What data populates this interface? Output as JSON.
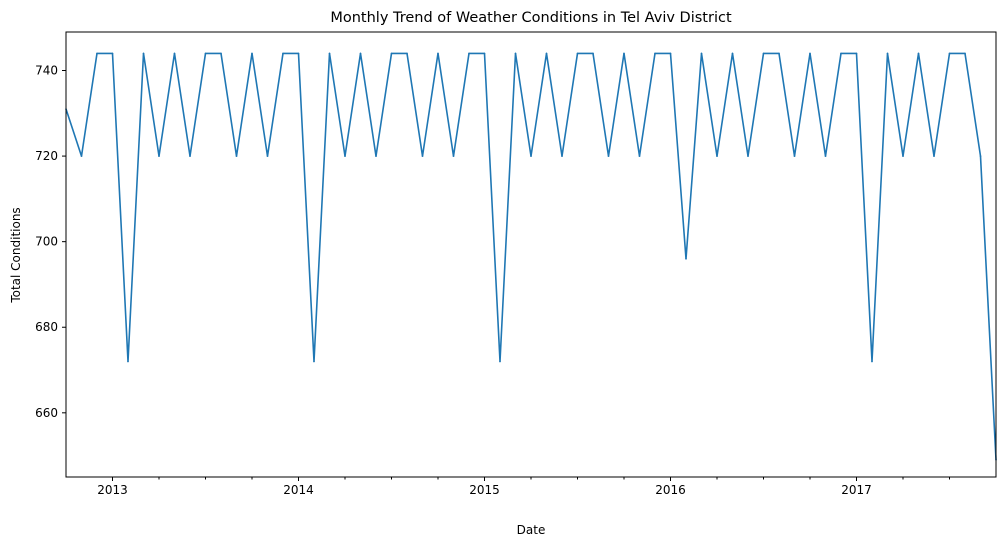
{
  "chart_data": {
    "type": "line",
    "title": "Monthly Trend of Weather Conditions in Tel Aviv District",
    "xlabel": "Date",
    "ylabel": "Total Conditions",
    "grid": false,
    "legend": "none",
    "series_color": "#1f77b4",
    "x_range": [
      "2012-10",
      "2017-10"
    ],
    "ylim": [
      645,
      749
    ],
    "y_ticks": [
      660,
      680,
      700,
      720,
      740
    ],
    "x_major_ticks": [
      {
        "date": "2013-01",
        "label": "2013"
      },
      {
        "date": "2014-01",
        "label": "2014"
      },
      {
        "date": "2015-01",
        "label": "2015"
      },
      {
        "date": "2016-01",
        "label": "2016"
      },
      {
        "date": "2017-01",
        "label": "2017"
      }
    ],
    "series": [
      {
        "x": [
          "2012-10",
          "2012-11",
          "2012-12",
          "2013-01",
          "2013-02",
          "2013-03",
          "2013-04",
          "2013-05",
          "2013-06",
          "2013-07",
          "2013-08",
          "2013-09",
          "2013-10",
          "2013-11",
          "2013-12",
          "2014-01",
          "2014-02",
          "2014-03",
          "2014-04",
          "2014-05",
          "2014-06",
          "2014-07",
          "2014-08",
          "2014-09",
          "2014-10",
          "2014-11",
          "2014-12",
          "2015-01",
          "2015-02",
          "2015-03",
          "2015-04",
          "2015-05",
          "2015-06",
          "2015-07",
          "2015-08",
          "2015-09",
          "2015-10",
          "2015-11",
          "2015-12",
          "2016-01",
          "2016-02",
          "2016-03",
          "2016-04",
          "2016-05",
          "2016-06",
          "2016-07",
          "2016-08",
          "2016-09",
          "2016-10",
          "2016-11",
          "2016-12",
          "2017-01",
          "2017-02",
          "2017-03",
          "2017-04",
          "2017-05",
          "2017-06",
          "2017-07",
          "2017-08",
          "2017-09",
          "2017-10"
        ],
        "values": [
          731,
          720,
          744,
          744,
          672,
          744,
          720,
          744,
          720,
          744,
          744,
          720,
          744,
          720,
          744,
          744,
          672,
          744,
          720,
          744,
          720,
          744,
          744,
          720,
          744,
          720,
          744,
          744,
          672,
          744,
          720,
          744,
          720,
          744,
          744,
          720,
          744,
          720,
          744,
          744,
          696,
          744,
          720,
          744,
          720,
          744,
          744,
          720,
          744,
          720,
          744,
          744,
          672,
          744,
          720,
          744,
          720,
          744,
          744,
          720,
          649
        ]
      }
    ]
  }
}
